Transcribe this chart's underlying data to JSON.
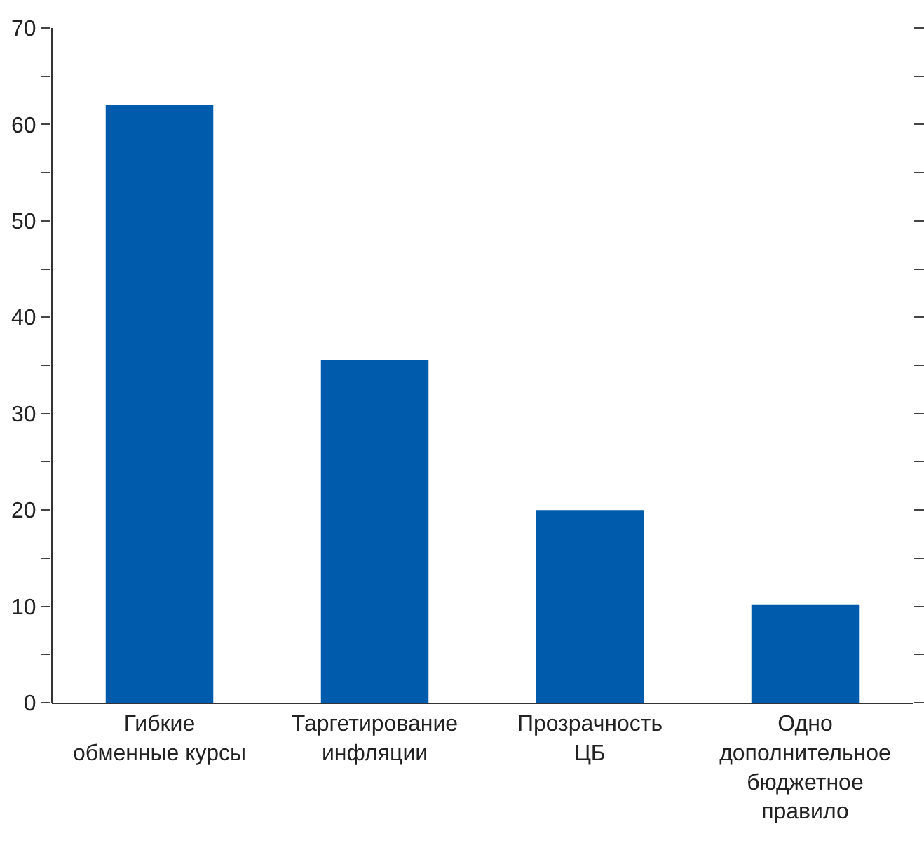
{
  "chart_data": {
    "type": "bar",
    "categories": [
      "Гибкие обменные курсы",
      "Таргетирование инфляции",
      "Прозрачность ЦБ",
      "Одно дополнительное бюджетное правило"
    ],
    "values": [
      62,
      35.5,
      20,
      10.2
    ],
    "color": "#005bac",
    "ylim": [
      0,
      70
    ],
    "yticks": [
      0,
      {
        "value": 5,
        "label": null
      },
      10,
      {
        "value": 15,
        "label": null
      },
      20,
      {
        "value": 25,
        "label": null
      },
      30,
      {
        "value": 35,
        "label": null
      },
      40,
      {
        "value": 45,
        "label": null
      },
      50,
      {
        "value": 55,
        "label": null
      },
      60,
      {
        "value": 65,
        "label": null
      },
      70
    ],
    "grid": false
  }
}
